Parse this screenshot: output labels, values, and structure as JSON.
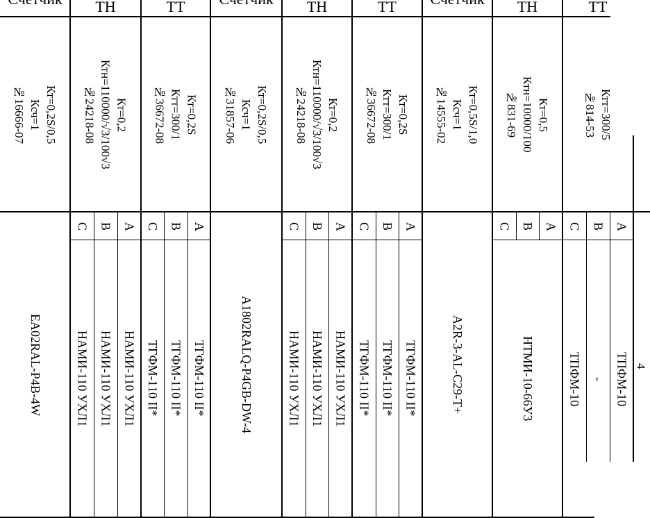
{
  "page_number": "4",
  "groups": [
    {
      "type": "meter",
      "header": "Счетчик",
      "params": [
        "Кт=0,2S/0,5",
        "Ксч=1",
        "№16666-07"
      ],
      "model": "EA02RAL-P4B-4W"
    },
    {
      "type": "tn",
      "header": "ТН",
      "params": [
        "Кт=0,2",
        "Ктн=110000/√3/100√3",
        "№24218-08"
      ],
      "phases": [
        {
          "phase": "C",
          "model": "НАМИ-110 УХЛ1"
        },
        {
          "phase": "B",
          "model": "НАМИ-110 УХЛ1"
        },
        {
          "phase": "A",
          "model": "НАМИ-110 УХЛ1"
        }
      ]
    },
    {
      "type": "tt",
      "header": "ТТ",
      "params": [
        "Кт=0,2S",
        "Ктт=300/1",
        "№36672-08"
      ],
      "phases": [
        {
          "phase": "C",
          "model": "ТГФМ-110 II*"
        },
        {
          "phase": "B",
          "model": "ТГФМ-110 II*"
        },
        {
          "phase": "A",
          "model": "ТГФМ-110 II*"
        }
      ]
    },
    {
      "type": "meter",
      "header": "Счетчик",
      "params": [
        "Кт=0,2S/0,5",
        "Ксч=1",
        "№31857-06"
      ],
      "model": "A1802RALQ-P4GB-DW-4"
    },
    {
      "type": "tn",
      "header": "ТН",
      "params": [
        "Кт=0,2",
        "Ктн=110000/√3/100√3",
        "№24218-08"
      ],
      "phases": [
        {
          "phase": "C",
          "model": "НАМИ-110 УХЛ1"
        },
        {
          "phase": "B",
          "model": "НАМИ-110 УХЛ1"
        },
        {
          "phase": "A",
          "model": "НАМИ-110 УХЛ1"
        }
      ]
    },
    {
      "type": "tt",
      "header": "ТТ",
      "params": [
        "Кт=0,2S",
        "Ктт=300/1",
        "№36672-08"
      ],
      "phases": [
        {
          "phase": "C",
          "model": "ТГФМ-110 II*"
        },
        {
          "phase": "B",
          "model": "ТГФМ-110 II*"
        },
        {
          "phase": "A",
          "model": "ТГФМ-110 II*"
        }
      ]
    },
    {
      "type": "meter",
      "header": "Счетчик",
      "params": [
        "Кт=0,5S/1,0",
        "Ксч=1",
        "№14555-02"
      ],
      "model": "A2R-3-AL-C29-T+"
    },
    {
      "type": "tn",
      "header": "ТН",
      "params": [
        "Кт=0,5",
        "Ктн=10000/100",
        "№831-69"
      ],
      "merged_model": "НТМИ-10-66У3",
      "phases": [
        {
          "phase": "C"
        },
        {
          "phase": "B"
        },
        {
          "phase": "A"
        }
      ]
    },
    {
      "type": "tt",
      "header": "ТТ",
      "params": [
        "Ктт=300/5",
        "№814-53"
      ],
      "phases": [
        {
          "phase": "C",
          "model": "ТПФМ-10"
        },
        {
          "phase": "B",
          "model": "-"
        },
        {
          "phase": "A",
          "model": "ТПФМ-10"
        }
      ]
    }
  ]
}
